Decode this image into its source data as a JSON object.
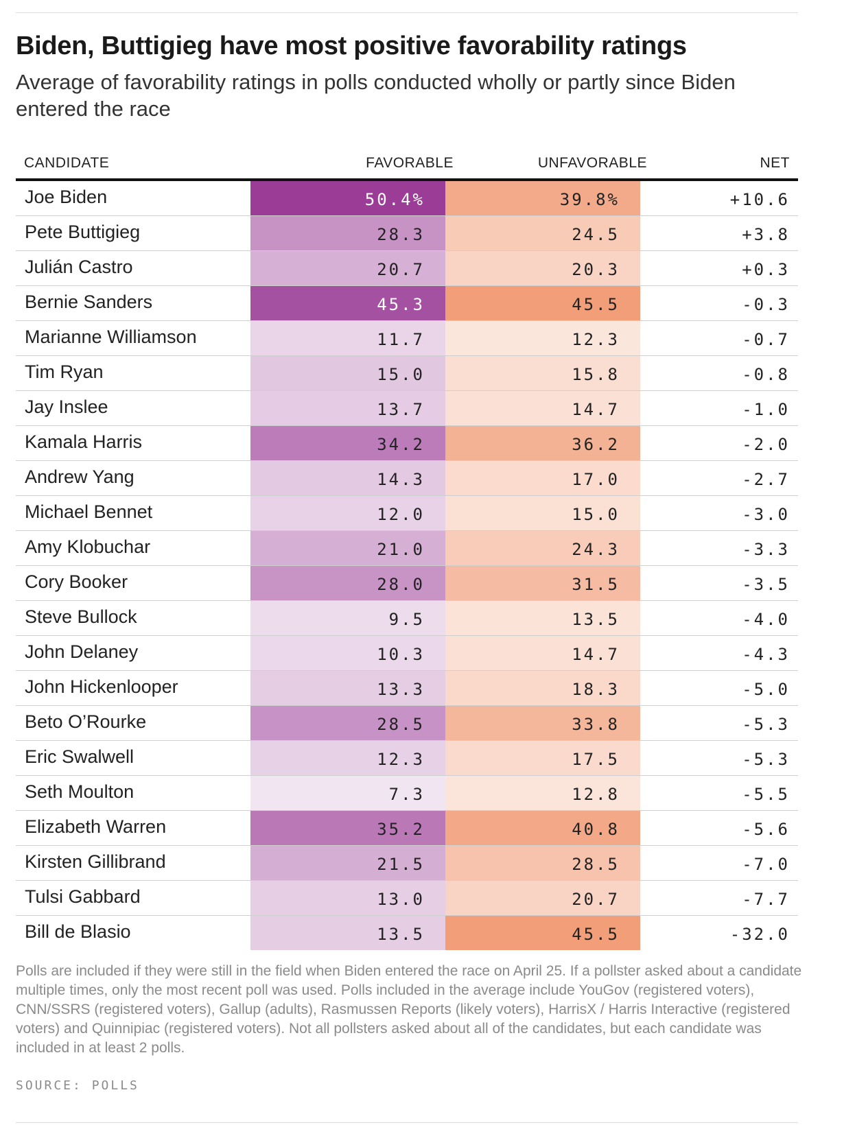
{
  "title": "Biden, Buttigieg have most positive favorability ratings",
  "subtitle": "Average of favorability ratings in polls conducted wholly or partly since Biden entered the race",
  "columns": {
    "candidate": "CANDIDATE",
    "favorable": "FAVORABLE",
    "unfavorable": "UNFAVORABLE",
    "net": "NET"
  },
  "colors": {
    "favorable_high": "#9b3d97",
    "unfavorable_high": "#f0936a"
  },
  "chart_data": {
    "type": "table",
    "title": "Biden, Buttigieg have most positive favorability ratings",
    "subtitle": "Average of favorability ratings in polls conducted wholly or partly since Biden entered the race",
    "columns": [
      "CANDIDATE",
      "FAVORABLE",
      "UNFAVORABLE",
      "NET"
    ],
    "rows": [
      {
        "candidate": "Joe Biden",
        "favorable": "50.4%",
        "unfavorable": "39.8%",
        "net": "+10.6",
        "fav": 50.4,
        "unf": 39.8
      },
      {
        "candidate": "Pete Buttigieg",
        "favorable": "28.3",
        "unfavorable": "24.5",
        "net": "+3.8",
        "fav": 28.3,
        "unf": 24.5
      },
      {
        "candidate": "Julián Castro",
        "favorable": "20.7",
        "unfavorable": "20.3",
        "net": "+0.3",
        "fav": 20.7,
        "unf": 20.3
      },
      {
        "candidate": "Bernie Sanders",
        "favorable": "45.3",
        "unfavorable": "45.5",
        "net": "-0.3",
        "fav": 45.3,
        "unf": 45.5
      },
      {
        "candidate": "Marianne Williamson",
        "favorable": "11.7",
        "unfavorable": "12.3",
        "net": "-0.7",
        "fav": 11.7,
        "unf": 12.3
      },
      {
        "candidate": "Tim Ryan",
        "favorable": "15.0",
        "unfavorable": "15.8",
        "net": "-0.8",
        "fav": 15.0,
        "unf": 15.8
      },
      {
        "candidate": "Jay Inslee",
        "favorable": "13.7",
        "unfavorable": "14.7",
        "net": "-1.0",
        "fav": 13.7,
        "unf": 14.7
      },
      {
        "candidate": "Kamala Harris",
        "favorable": "34.2",
        "unfavorable": "36.2",
        "net": "-2.0",
        "fav": 34.2,
        "unf": 36.2
      },
      {
        "candidate": "Andrew Yang",
        "favorable": "14.3",
        "unfavorable": "17.0",
        "net": "-2.7",
        "fav": 14.3,
        "unf": 17.0
      },
      {
        "candidate": "Michael Bennet",
        "favorable": "12.0",
        "unfavorable": "15.0",
        "net": "-3.0",
        "fav": 12.0,
        "unf": 15.0
      },
      {
        "candidate": "Amy Klobuchar",
        "favorable": "21.0",
        "unfavorable": "24.3",
        "net": "-3.3",
        "fav": 21.0,
        "unf": 24.3
      },
      {
        "candidate": "Cory Booker",
        "favorable": "28.0",
        "unfavorable": "31.5",
        "net": "-3.5",
        "fav": 28.0,
        "unf": 31.5
      },
      {
        "candidate": "Steve Bullock",
        "favorable": "9.5",
        "unfavorable": "13.5",
        "net": "-4.0",
        "fav": 9.5,
        "unf": 13.5
      },
      {
        "candidate": "John Delaney",
        "favorable": "10.3",
        "unfavorable": "14.7",
        "net": "-4.3",
        "fav": 10.3,
        "unf": 14.7
      },
      {
        "candidate": "John Hickenlooper",
        "favorable": "13.3",
        "unfavorable": "18.3",
        "net": "-5.0",
        "fav": 13.3,
        "unf": 18.3
      },
      {
        "candidate": "Beto O’Rourke",
        "favorable": "28.5",
        "unfavorable": "33.8",
        "net": "-5.3",
        "fav": 28.5,
        "unf": 33.8
      },
      {
        "candidate": "Eric Swalwell",
        "favorable": "12.3",
        "unfavorable": "17.5",
        "net": "-5.3",
        "fav": 12.3,
        "unf": 17.5
      },
      {
        "candidate": "Seth Moulton",
        "favorable": "7.3",
        "unfavorable": "12.8",
        "net": "-5.5",
        "fav": 7.3,
        "unf": 12.8
      },
      {
        "candidate": "Elizabeth Warren",
        "favorable": "35.2",
        "unfavorable": "40.8",
        "net": "-5.6",
        "fav": 35.2,
        "unf": 40.8
      },
      {
        "candidate": "Kirsten Gillibrand",
        "favorable": "21.5",
        "unfavorable": "28.5",
        "net": "-7.0",
        "fav": 21.5,
        "unf": 28.5
      },
      {
        "candidate": "Tulsi Gabbard",
        "favorable": "13.0",
        "unfavorable": "20.7",
        "net": "-7.7",
        "fav": 13.0,
        "unf": 20.7
      },
      {
        "candidate": "Bill de Blasio",
        "favorable": "13.5",
        "unfavorable": "45.5",
        "net": "-32.0",
        "fav": 13.5,
        "unf": 45.5
      }
    ]
  },
  "note": "Polls are included if they were still in the field when Biden entered the race on April 25. If a pollster asked about a candidate multiple times, only the most recent poll was used. Polls included in the average include YouGov (registered voters), CNN/SSRS (registered voters), Gallup (adults), Rasmussen Reports (likely voters), HarrisX / Harris Interactive (registered voters) and Quinnipiac (registered voters). Not all pollsters asked about all of the candidates, but each candidate was included in at least 2 polls.",
  "source": "SOURCE: POLLS"
}
